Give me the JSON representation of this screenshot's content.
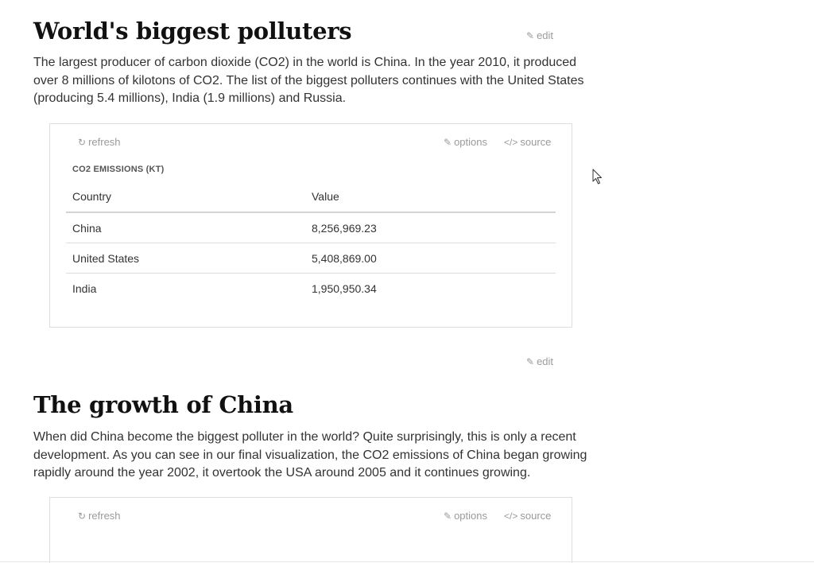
{
  "section1": {
    "heading": "World's biggest polluters",
    "edit_label": "edit",
    "paragraph": "The largest producer of carbon dioxide (CO2) in the world is China. In the year 2010, it produced over 8 millions of kilotons of CO2. The list of the biggest polluters continues with the United States (producing 5.4 millions), India (1.9 millions) and Russia.",
    "card": {
      "refresh_label": "refresh",
      "options_label": "options",
      "source_label": "source",
      "refresh_icon": "refresh-icon",
      "options_icon": "edit-icon",
      "source_icon": "code-icon",
      "table_title": "CO2 EMISSIONS (KT)",
      "columns": [
        "Country",
        "Value"
      ],
      "rows": [
        [
          "China",
          "8,256,969.23"
        ],
        [
          "United States",
          "5,408,869.00"
        ],
        [
          "India",
          "1,950,950.34"
        ]
      ]
    },
    "below_edit_label": "edit"
  },
  "section2": {
    "heading": "The growth of China",
    "paragraph": "When did China become the biggest polluter in the world? Quite surprisingly, this is only a recent development. As you can see in our final visualization, the CO2 emissions of China began growing rapidly around the year 2002, it overtook the USA around 2005 and it continues growing.",
    "card": {
      "refresh_label": "refresh",
      "options_label": "options",
      "source_label": "source"
    }
  },
  "colors": {
    "muted_link": "#9a9a9a",
    "text": "#333333",
    "heading": "#111111",
    "border": "#dedede"
  }
}
